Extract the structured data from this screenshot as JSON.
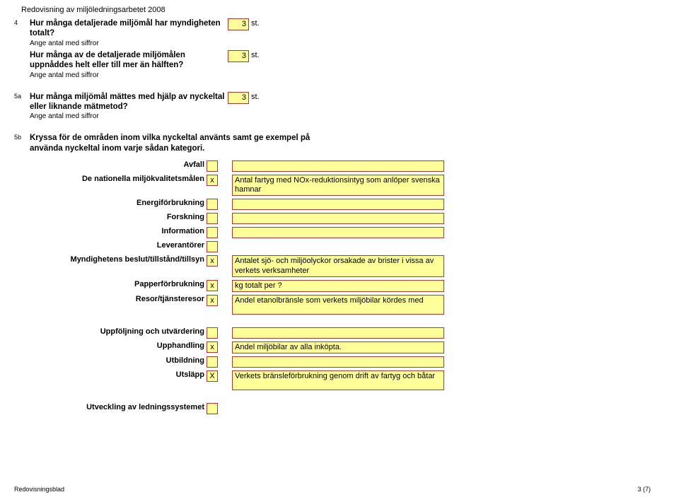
{
  "header": "Redovisning av miljöledningsarbetet 2008",
  "q4": {
    "num": "4",
    "text": "Hur många detaljerade miljömål har myndigheten totalt?",
    "hint": "Ange antal med siffror",
    "value": "3",
    "unit": "st."
  },
  "q4b": {
    "text": "Hur många av de detaljerade miljömålen uppnåddes helt eller till mer än hälften?",
    "hint": "Ange antal med siffror",
    "value": "3",
    "unit": "st."
  },
  "q5a": {
    "num": "5a",
    "text": "Hur många miljömål mättes med hjälp av nyckeltal eller liknande mätmetod?",
    "hint": "Ange antal med siffror",
    "value": "3",
    "unit": "st."
  },
  "q5b": {
    "num": "5b",
    "text": "Kryssa för de områden inom vilka nyckeltal använts samt ge exempel på använda nyckeltal inom varje sådan kategori."
  },
  "categories1": [
    {
      "label": "Avfall",
      "check": "",
      "desc": ""
    },
    {
      "label": "De nationella miljökvalitetsmålen",
      "check": "x",
      "desc": "Antal fartyg med NOx-reduktionsintyg som anlöper svenska hamnar"
    },
    {
      "label": "Energiförbrukning",
      "check": "",
      "desc": ""
    },
    {
      "label": "Forskning",
      "check": "",
      "desc": ""
    },
    {
      "label": "Information",
      "check": "",
      "desc": ""
    },
    {
      "label": "Leverantörer",
      "check": "",
      "desc": ""
    },
    {
      "label": "Myndighetens beslut/tillstånd/tillsyn",
      "check": "x",
      "desc": "Antalet sjö- och miljöolyckor orsakade av brister i vissa av verkets verksamheter"
    },
    {
      "label": "Papperförbrukning",
      "check": "x",
      "desc": "kg totalt per ?"
    },
    {
      "label": "Resor/tjänsteresor",
      "check": "x",
      "desc": "Andel etanolbränsle som verkets miljöbilar kördes med"
    }
  ],
  "categories2": [
    {
      "label": "Uppföljning och utvärdering",
      "check": "",
      "desc": ""
    },
    {
      "label": "Upphandling",
      "check": "x",
      "desc": "Andel miljöbilar av alla inköpta."
    },
    {
      "label": "Utbildning",
      "check": "",
      "desc": ""
    },
    {
      "label": "Utsläpp",
      "check": "X",
      "desc": "Verkets bränsleförbrukning genom drift av fartyg och båtar"
    }
  ],
  "categories3": [
    {
      "label": "Utveckling av ledningssystemet",
      "check": "",
      "desc": ""
    }
  ],
  "footer": {
    "left": "Redovisningsblad",
    "right": "3 (7)"
  }
}
